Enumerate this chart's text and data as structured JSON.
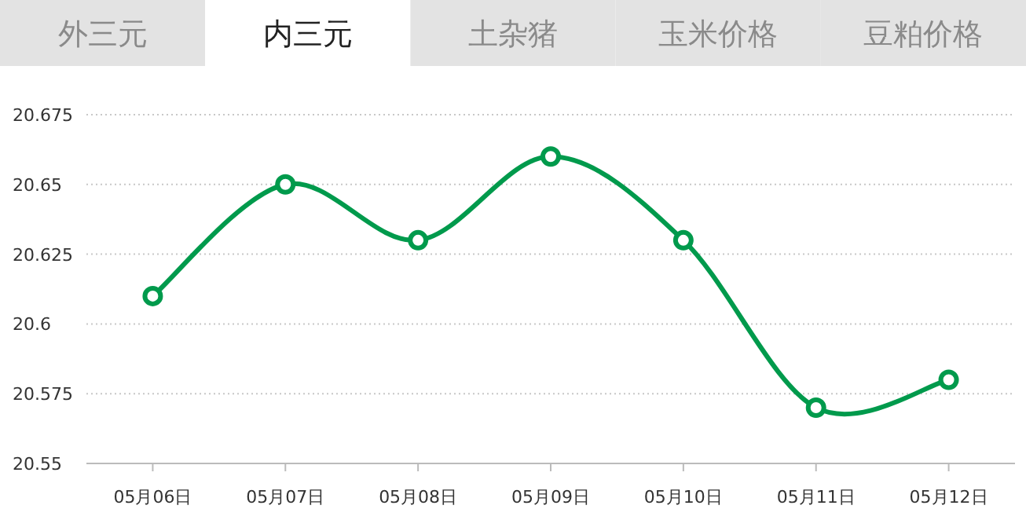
{
  "chart_data": {
    "type": "line",
    "annotations": [
      "外三元",
      "内三元",
      "土杂猪",
      "玉米价格",
      "豆粕价格"
    ],
    "categories": [
      "05月06日",
      "05月07日",
      "05月08日",
      "05月09日",
      "05月10日",
      "05月11日",
      "05月12日"
    ],
    "series": [
      {
        "color": "#009a4c",
        "values": [
          20.61,
          20.65,
          20.63,
          20.66,
          20.63,
          20.57,
          20.58
        ]
      }
    ],
    "ylim": [
      20.55,
      20.675
    ],
    "yticks": [
      20.55,
      20.575,
      20.6,
      20.625,
      20.65,
      20.675
    ],
    "grid": "y",
    "marker": "circle",
    "line_style": "solid"
  }
}
